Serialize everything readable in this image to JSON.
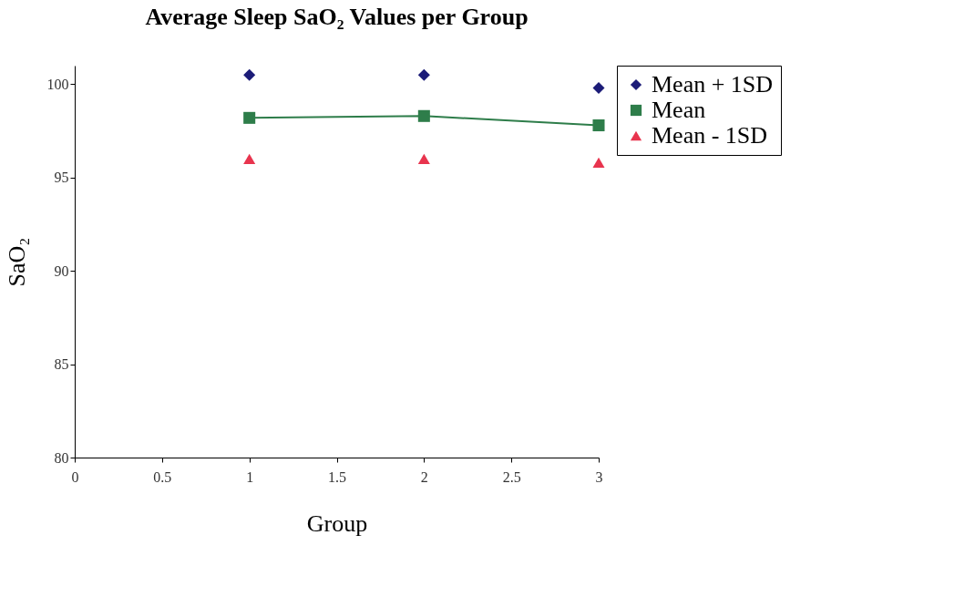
{
  "chart_data": {
    "type": "scatter",
    "title": "Average Sleep SaO₂ Values per Group",
    "xlabel": "Group",
    "ylabel": "SaO₂",
    "x": [
      1,
      2,
      3
    ],
    "series": [
      {
        "name": "Mean + 1SD",
        "marker": "diamond",
        "color": "#1c1c78",
        "values": [
          100.5,
          100.5,
          99.8
        ]
      },
      {
        "name": "Mean",
        "type": "line",
        "marker": "square",
        "color": "#2e7d4a",
        "values": [
          98.2,
          98.3,
          97.8
        ]
      },
      {
        "name": "Mean - 1SD",
        "marker": "triangle",
        "color": "#e8344e",
        "values": [
          96.0,
          96.0,
          95.8
        ]
      }
    ],
    "xlim": [
      0,
      3
    ],
    "xticks": [
      0,
      0.5,
      1,
      1.5,
      2,
      2.5,
      3
    ],
    "ylim": [
      80,
      101
    ],
    "yticks": [
      80,
      85,
      90,
      95,
      100
    ],
    "grid": false,
    "legend": "right"
  }
}
